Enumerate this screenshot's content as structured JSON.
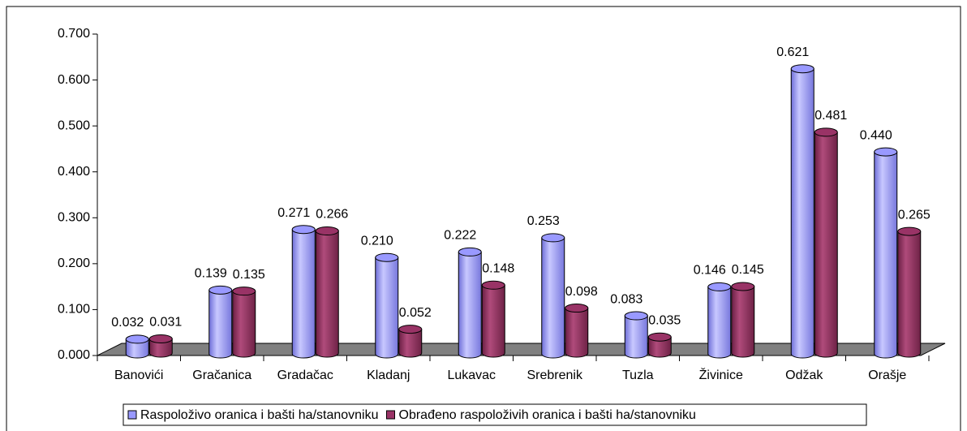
{
  "chart_data": {
    "type": "bar3d",
    "categories": [
      "Banovići",
      "Gračanica",
      "Gradačac",
      "Kladanj",
      "Lukavac",
      "Srebrenik",
      "Tuzla",
      "Živinice",
      "Odžak",
      "Orašje"
    ],
    "series": [
      {
        "name": "Raspoloživo oranica i bašti ha/stanovniku",
        "color": "#9999ff",
        "values": [
          0.032,
          0.139,
          0.271,
          0.21,
          0.222,
          0.253,
          0.083,
          0.146,
          0.621,
          0.44
        ],
        "value_labels": [
          "0.032",
          "0.139",
          "0.271",
          "0.210",
          "0.222",
          "0.253",
          "0.083",
          "0.146",
          "0.621",
          "0.440"
        ]
      },
      {
        "name": "Obrađeno raspoloživih oranica i bašti ha/stanovniku",
        "color": "#993366",
        "values": [
          0.031,
          0.135,
          0.266,
          0.052,
          0.148,
          0.098,
          0.035,
          0.145,
          0.481,
          0.265
        ],
        "value_labels": [
          "0.031",
          "0.135",
          "0.266",
          "0.052",
          "0.148",
          "0.098",
          "0.035",
          "0.145",
          "0.481",
          "0.265"
        ]
      }
    ],
    "ylim": [
      0,
      0.7
    ],
    "yticks": [
      {
        "value": 0,
        "label": "0.000"
      },
      {
        "value": 0.1,
        "label": "0.100"
      },
      {
        "value": 0.2,
        "label": "0.200"
      },
      {
        "value": 0.3,
        "label": "0.300"
      },
      {
        "value": 0.4,
        "label": "0.400"
      },
      {
        "value": 0.5,
        "label": "0.500"
      },
      {
        "value": 0.6,
        "label": "0.600"
      },
      {
        "value": 0.7,
        "label": "0.700"
      }
    ],
    "legend": "bottom"
  }
}
